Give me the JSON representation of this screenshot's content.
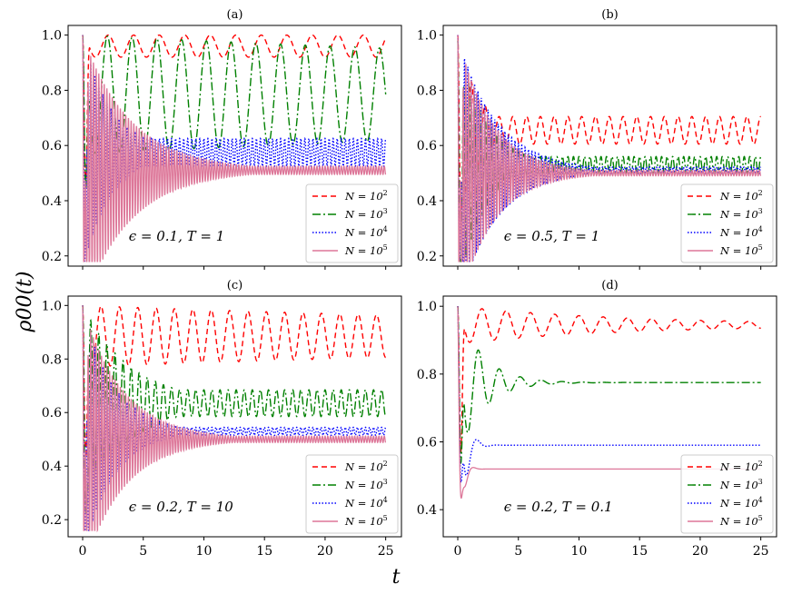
{
  "figure": {
    "ylabel": "ρ00(t)",
    "xlabel": "t"
  },
  "chart_data": [
    {
      "type": "line",
      "panel": "(a)",
      "title": "(a)",
      "annotation": "ϵ = 0.1, T = 1",
      "xlim": [
        -1.2,
        26.3
      ],
      "ylim": [
        0.163,
        1.035
      ],
      "xticks": [
        0,
        5,
        10,
        15,
        20,
        25
      ],
      "yticks": [
        0.2,
        0.4,
        0.6,
        0.8,
        1.0
      ],
      "ytick_labels": [
        "0.2",
        "0.4",
        "0.6",
        "0.8",
        "1.0"
      ],
      "show_xtick_labels": false,
      "legend": "lower-right",
      "series": [
        {
          "name": "N = 10^2",
          "label_base": "N = 10",
          "label_exp": "2",
          "color": "#ff0000",
          "dash": "6,4",
          "ss": 0.96,
          "amp0": 0.04,
          "decay": 0,
          "freq": 0.475,
          "minv": 0.18
        },
        {
          "name": "N = 10^3",
          "label_base": "N = 10",
          "label_exp": "3",
          "color": "#008000",
          "dash": "9,3,2,3",
          "ss": 0.785,
          "amp0": 0.215,
          "decay": 0.01,
          "freq": 0.49,
          "minv": 0.18
        },
        {
          "name": "N = 10^4",
          "label_base": "N = 10",
          "label_exp": "4",
          "color": "#0000ff",
          "dash": "1.5,2",
          "ss": 0.575,
          "amp0": 0.425,
          "decay": 0.42,
          "env_floor": 0.05,
          "freq": 3.0,
          "minv": 0.18
        },
        {
          "name": "N = 10^5",
          "label_base": "N = 10",
          "label_exp": "5",
          "color": "#dd7799",
          "dash": "",
          "ss": 0.51,
          "amp0": 0.49,
          "decay": 0.25,
          "env_floor": 0.015,
          "freq": 4.5,
          "minv": 0.18
        }
      ]
    },
    {
      "type": "line",
      "panel": "(b)",
      "title": "(b)",
      "annotation": "ϵ = 0.5, T = 1",
      "xlim": [
        -1.2,
        26.3
      ],
      "ylim": [
        0.163,
        1.035
      ],
      "xticks": [
        0,
        5,
        10,
        15,
        20,
        25
      ],
      "yticks": [
        0.2,
        0.4,
        0.6,
        0.8,
        1.0
      ],
      "ytick_labels": [
        "0.2",
        "0.4",
        "0.6",
        "0.8",
        "1.0"
      ],
      "show_xtick_labels": false,
      "legend": "lower-right",
      "series": [
        {
          "name": "N = 10^2",
          "label_base": "N = 10",
          "label_exp": "2",
          "color": "#ff0000",
          "dash": "6,4",
          "ss": 0.655,
          "amp0": 0.345,
          "decay": 0.6,
          "env_floor": 0.05,
          "freq": 0.88,
          "minv": 0.18
        },
        {
          "name": "N = 10^3",
          "label_base": "N = 10",
          "label_exp": "3",
          "color": "#008000",
          "dash": "9,3,2,3",
          "ss": 0.53,
          "amp0": 0.45,
          "decay": 0.45,
          "env_floor": 0.03,
          "freq": 2.2,
          "minv": 0.18
        },
        {
          "name": "N = 10^4",
          "label_base": "N = 10",
          "label_exp": "4",
          "color": "#0000ff",
          "dash": "1.5,2",
          "ss": 0.51,
          "amp0": 0.49,
          "decay": 0.32,
          "env_floor": 0.012,
          "freq": 3.6,
          "minv": 0.18
        },
        {
          "name": "N = 10^5",
          "label_base": "N = 10",
          "label_exp": "5",
          "color": "#dd7799",
          "dash": "",
          "ss": 0.5,
          "amp0": 0.5,
          "decay": 0.35,
          "env_floor": 0.01,
          "freq": 4.5,
          "minv": 0.18
        }
      ]
    },
    {
      "type": "line",
      "panel": "(c)",
      "title": "(c)",
      "annotation": "ϵ = 0.2, T = 10",
      "xlim": [
        -1.2,
        26.3
      ],
      "ylim": [
        0.136,
        1.035
      ],
      "xticks": [
        0,
        5,
        10,
        15,
        20,
        25
      ],
      "yticks": [
        0.2,
        0.4,
        0.6,
        0.8,
        1.0
      ],
      "ytick_labels": [
        "0.2",
        "0.4",
        "0.6",
        "0.8",
        "1.0"
      ],
      "show_xtick_labels": true,
      "legend": "lower-right",
      "series": [
        {
          "name": "N = 10^2",
          "label_base": "N = 10",
          "label_exp": "2",
          "color": "#ff0000",
          "dash": "6,4",
          "ss": 0.885,
          "amp0": 0.115,
          "decay": 0.015,
          "freq": 0.66,
          "minv": 0.16
        },
        {
          "name": "N = 10^3",
          "label_base": "N = 10",
          "label_exp": "3",
          "color": "#008000",
          "dash": "9,3,2,3",
          "ss": 0.635,
          "amp0": 0.365,
          "decay": 0.25,
          "env_floor": 0.05,
          "freq": 1.5,
          "minv": 0.16
        },
        {
          "name": "N = 10^4",
          "label_base": "N = 10",
          "label_exp": "4",
          "color": "#0000ff",
          "dash": "1.5,2",
          "ss": 0.53,
          "amp0": 0.47,
          "decay": 0.4,
          "env_floor": 0.015,
          "freq": 3.0,
          "minv": 0.16
        },
        {
          "name": "N = 10^5",
          "label_base": "N = 10",
          "label_exp": "5",
          "color": "#dd7799",
          "dash": "",
          "ss": 0.5,
          "amp0": 0.5,
          "decay": 0.3,
          "env_floor": 0.012,
          "freq": 4.5,
          "minv": 0.16
        }
      ]
    },
    {
      "type": "line",
      "panel": "(d)",
      "title": "(d)",
      "annotation": "ϵ = 0.2, T = 0.1",
      "xlim": [
        -1.2,
        26.3
      ],
      "ylim": [
        0.32,
        1.03
      ],
      "xticks": [
        0,
        5,
        10,
        15,
        20,
        25
      ],
      "yticks": [
        0.4,
        0.6,
        0.8,
        1.0
      ],
      "ytick_labels": [
        "0.4",
        "0.6",
        "0.8",
        "1.0"
      ],
      "show_xtick_labels": true,
      "legend": "lower-right",
      "series": [
        {
          "name": "N = 10^2",
          "label_base": "N = 10",
          "label_exp": "2",
          "color": "#ff0000",
          "dash": "6,4",
          "ss": 0.945,
          "amp0": 0.055,
          "decay": 0.07,
          "freq": 0.5,
          "minv": 0.35
        },
        {
          "name": "N = 10^3",
          "label_base": "N = 10",
          "label_exp": "3",
          "color": "#008000",
          "dash": "9,3,2,3",
          "ss": 0.775,
          "amp0": 0.225,
          "decay": 0.5,
          "freq": 0.58,
          "minv": 0.35
        },
        {
          "name": "N = 10^4",
          "label_base": "N = 10",
          "label_exp": "4",
          "color": "#0000ff",
          "dash": "1.5,2",
          "ss": 0.59,
          "amp0": 0.41,
          "decay": 2.0,
          "freq": 0.6,
          "minv": 0.35
        },
        {
          "name": "N = 10^5",
          "label_base": "N = 10",
          "label_exp": "5",
          "color": "#dd7799",
          "dash": "",
          "ss": 0.52,
          "amp0": 0.48,
          "decay": 3.5,
          "freq": 0.7,
          "minv": 0.35
        }
      ]
    }
  ]
}
